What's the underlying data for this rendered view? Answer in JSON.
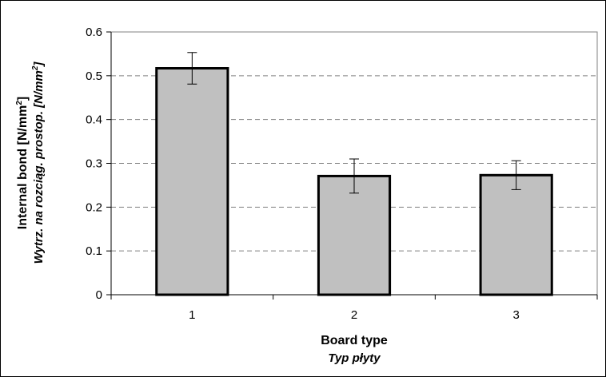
{
  "chart_data": {
    "type": "bar",
    "categories": [
      "1",
      "2",
      "3"
    ],
    "values": [
      0.517,
      0.271,
      0.273
    ],
    "error": [
      0.036,
      0.039,
      0.033
    ],
    "ylim": [
      0,
      0.6
    ],
    "yticks": [
      "0",
      "0.1",
      "0.2",
      "0.3",
      "0.4",
      "0.5",
      "0.6"
    ],
    "xlabel": "Board type",
    "xlabel_sub": "Typ płyty",
    "ylabel": "Internal bond [N/mm2]",
    "ylabel_sub": "Wytrz. na rozciąg. prostop. [N/mm2]",
    "grid": true,
    "colors": {
      "bar_fill": "#c0c0c0",
      "bar_stroke": "#000000",
      "grid": "#808080"
    }
  },
  "labels": {
    "ylabel_main": "Internal bond [N/mm",
    "ylabel_sup": "2",
    "ylabel_close": "]",
    "ylabel_sub_main": "Wytrz. na rozciąg. prostop. [N/mm",
    "ylabel_sub_sup": "2",
    "ylabel_sub_close": "]",
    "xlabel": "Board type",
    "xlabel_sub": "Typ płyty"
  }
}
